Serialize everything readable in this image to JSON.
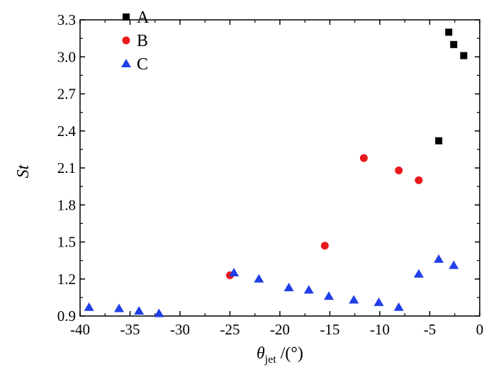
{
  "chart_data": {
    "type": "scatter",
    "xlabel": "θ",
    "xlabel_sub": "jet",
    "xlabel_unit": " /(°)",
    "ylabel": "St",
    "xlim": [
      -40,
      0
    ],
    "ylim": [
      0.9,
      3.3
    ],
    "x_ticks": [
      -40,
      -35,
      -30,
      -25,
      -20,
      -15,
      -10,
      -5,
      0
    ],
    "y_ticks": [
      0.9,
      1.2,
      1.5,
      1.8,
      2.1,
      2.4,
      2.7,
      3.0,
      3.3
    ],
    "x_tick_labels": [
      "-40",
      "-35",
      "-30",
      "-25",
      "-20",
      "-15",
      "-10",
      "-5",
      "0"
    ],
    "y_tick_labels": [
      "0.9",
      "1.2",
      "1.5",
      "1.8",
      "2.1",
      "2.4",
      "2.7",
      "3.0",
      "3.3"
    ],
    "grid": false,
    "legend_position": "top-left",
    "series": [
      {
        "name": "A",
        "marker": "square",
        "color": "#000000",
        "points": [
          [
            -4.1,
            2.32
          ],
          [
            -3.1,
            3.2
          ],
          [
            -2.6,
            3.1
          ],
          [
            -1.6,
            3.01
          ]
        ]
      },
      {
        "name": "B",
        "marker": "circle",
        "color": "#e8191c",
        "points": [
          [
            -25.0,
            1.23
          ],
          [
            -15.5,
            1.47
          ],
          [
            -11.6,
            2.18
          ],
          [
            -8.1,
            2.08
          ],
          [
            -6.1,
            2.0
          ]
        ]
      },
      {
        "name": "C",
        "marker": "triangle",
        "color": "#1f3fe8",
        "points": [
          [
            -39.1,
            0.97
          ],
          [
            -36.1,
            0.96
          ],
          [
            -34.1,
            0.94
          ],
          [
            -32.1,
            0.92
          ],
          [
            -24.6,
            1.25
          ],
          [
            -22.1,
            1.2
          ],
          [
            -19.1,
            1.13
          ],
          [
            -17.1,
            1.11
          ],
          [
            -15.1,
            1.06
          ],
          [
            -12.6,
            1.03
          ],
          [
            -10.1,
            1.01
          ],
          [
            -8.1,
            0.97
          ],
          [
            -6.1,
            1.24
          ],
          [
            -4.1,
            1.36
          ],
          [
            -2.6,
            1.31
          ]
        ]
      }
    ]
  }
}
